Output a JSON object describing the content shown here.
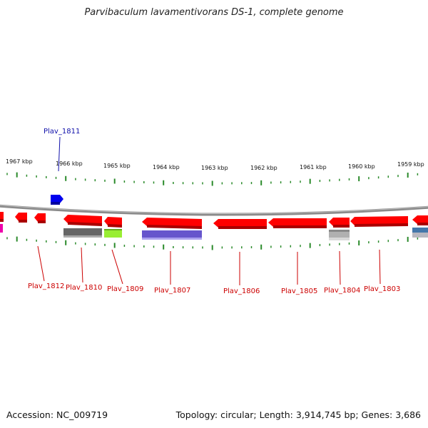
{
  "title": "Parvibaculum lavamentivorans DS-1, complete genome",
  "footer": {
    "accession": "Accession: NC_009719",
    "summary": "Topology: circular; Length: 3,914,745 bp; Genes: 3,686"
  },
  "ruler": {
    "unit": "kbp",
    "labels": [
      "1967 kbp",
      "1966 kbp",
      "1965 kbp",
      "1964 kbp",
      "1963 kbp",
      "1962 kbp",
      "1961 kbp",
      "1960 kbp",
      "1959 kbp"
    ]
  },
  "gene_labels": {
    "top": [
      "Plav_1811"
    ],
    "bottom": [
      "Plav_1812",
      "Plav_1810",
      "Plav_1809",
      "Plav_1807",
      "Plav_1806",
      "Plav_1805",
      "Plav_1804",
      "Plav_1803"
    ]
  },
  "colors": {
    "backbone": "#8a8a8a",
    "gene_red": "#ff0000",
    "gene_blue": "#0000ee",
    "label_red": "#cc0000",
    "label_blue": "#1010aa",
    "tick_green": "#2a8a2a",
    "gene_dark_grey": "#666666",
    "gene_light_grey": "#b0b0b0",
    "gene_lime": "#99ee33",
    "gene_purple": "#6655cc",
    "gene_magenta": "#ee00aa",
    "gene_steelblue": "#4477aa"
  }
}
